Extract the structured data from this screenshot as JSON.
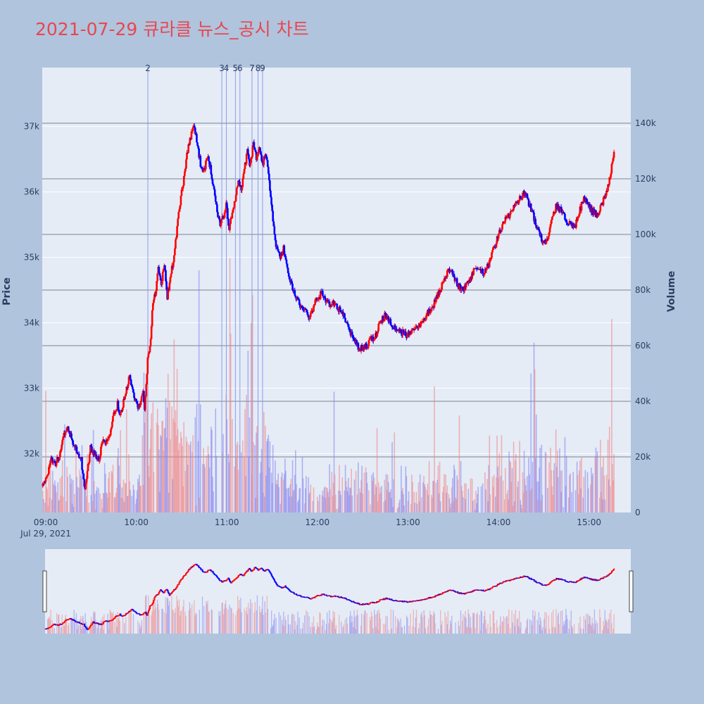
{
  "title": "2021-07-29 큐라클 뉴스_공시 차트",
  "colors": {
    "up": "#ff0000",
    "down": "#0000ff",
    "title": "#e8474f",
    "paper": "#b0c4de",
    "plot": "#e5ecf6",
    "news_line": "#8c9cf0"
  },
  "chart_data": {
    "type": "candlestick",
    "y_title": "Price",
    "y2_title": "Volume",
    "y_ticks": [
      {
        "value": 32000,
        "label": "32k"
      },
      {
        "value": 33000,
        "label": "33k"
      },
      {
        "value": 34000,
        "label": "34k"
      },
      {
        "value": 35000,
        "label": "35k"
      },
      {
        "value": 36000,
        "label": "36k"
      },
      {
        "value": 37000,
        "label": "37k"
      }
    ],
    "y2_ticks": [
      {
        "value": 0,
        "label": "0"
      },
      {
        "value": 20000,
        "label": "20k"
      },
      {
        "value": 40000,
        "label": "40k"
      },
      {
        "value": 60000,
        "label": "60k"
      },
      {
        "value": 80000,
        "label": "80k"
      },
      {
        "value": 100000,
        "label": "100k"
      },
      {
        "value": 120000,
        "label": "120k"
      },
      {
        "value": 140000,
        "label": "140k"
      }
    ],
    "x_ticks": [
      {
        "minute": 0,
        "label": "09:00",
        "sub": "Jul 29, 2021"
      },
      {
        "minute": 60,
        "label": "10:00"
      },
      {
        "minute": 120,
        "label": "11:00"
      },
      {
        "minute": 180,
        "label": "12:00"
      },
      {
        "minute": 240,
        "label": "13:00"
      },
      {
        "minute": 300,
        "label": "14:00"
      },
      {
        "minute": 360,
        "label": "15:00"
      }
    ],
    "ylim": [
      31100,
      37900
    ],
    "y2lim": [
      0,
      160000
    ],
    "xlim": [
      0,
      390
    ],
    "price_path": [
      [
        0,
        31500
      ],
      [
        3,
        31600
      ],
      [
        6,
        31900
      ],
      [
        9,
        31850
      ],
      [
        12,
        32000
      ],
      [
        14,
        32300
      ],
      [
        17,
        32400
      ],
      [
        20,
        32200
      ],
      [
        23,
        32050
      ],
      [
        26,
        31900
      ],
      [
        28,
        31450
      ],
      [
        30,
        31700
      ],
      [
        32,
        32100
      ],
      [
        35,
        32000
      ],
      [
        38,
        31900
      ],
      [
        40,
        32200
      ],
      [
        42,
        32150
      ],
      [
        45,
        32300
      ],
      [
        47,
        32600
      ],
      [
        50,
        32750
      ],
      [
        52,
        32600
      ],
      [
        54,
        32800
      ],
      [
        56,
        33000
      ],
      [
        58,
        33200
      ],
      [
        60,
        32950
      ],
      [
        62,
        32800
      ],
      [
        64,
        32700
      ],
      [
        67,
        32950
      ],
      [
        68,
        32650
      ],
      [
        70,
        33450
      ],
      [
        72,
        33750
      ],
      [
        73,
        34200
      ],
      [
        75,
        34450
      ],
      [
        77,
        34800
      ],
      [
        79,
        34600
      ],
      [
        81,
        34900
      ],
      [
        83,
        34400
      ],
      [
        85,
        34700
      ],
      [
        88,
        35100
      ],
      [
        90,
        35600
      ],
      [
        92,
        35900
      ],
      [
        95,
        36400
      ],
      [
        97,
        36700
      ],
      [
        99,
        36900
      ],
      [
        101,
        37000
      ],
      [
        103,
        36700
      ],
      [
        106,
        36300
      ],
      [
        108,
        36400
      ],
      [
        110,
        36550
      ],
      [
        112,
        36300
      ],
      [
        114,
        36000
      ],
      [
        116,
        35700
      ],
      [
        118,
        35500
      ],
      [
        120,
        35600
      ],
      [
        122,
        35800
      ],
      [
        124,
        35400
      ],
      [
        126,
        35700
      ],
      [
        128,
        35900
      ],
      [
        130,
        36200
      ],
      [
        132,
        36000
      ],
      [
        134,
        36350
      ],
      [
        136,
        36600
      ],
      [
        138,
        36400
      ],
      [
        140,
        36750
      ],
      [
        142,
        36500
      ],
      [
        144,
        36700
      ],
      [
        146,
        36400
      ],
      [
        148,
        36600
      ],
      [
        150,
        36300
      ],
      [
        152,
        35800
      ],
      [
        154,
        35300
      ],
      [
        156,
        35100
      ],
      [
        158,
        35000
      ],
      [
        160,
        35150
      ],
      [
        162,
        34900
      ],
      [
        164,
        34700
      ],
      [
        166,
        34500
      ],
      [
        168,
        34400
      ],
      [
        170,
        34300
      ],
      [
        172,
        34200
      ],
      [
        175,
        34150
      ],
      [
        177,
        34050
      ],
      [
        179,
        34200
      ],
      [
        182,
        34350
      ],
      [
        185,
        34450
      ],
      [
        188,
        34350
      ],
      [
        191,
        34250
      ],
      [
        194,
        34300
      ],
      [
        197,
        34200
      ],
      [
        200,
        34100
      ],
      [
        203,
        33950
      ],
      [
        206,
        33750
      ],
      [
        209,
        33650
      ],
      [
        212,
        33600
      ],
      [
        215,
        33650
      ],
      [
        218,
        33750
      ],
      [
        221,
        33800
      ],
      [
        224,
        34000
      ],
      [
        227,
        34100
      ],
      [
        230,
        34050
      ],
      [
        233,
        33950
      ],
      [
        236,
        33900
      ],
      [
        239,
        33850
      ],
      [
        242,
        33800
      ],
      [
        245,
        33850
      ],
      [
        248,
        33900
      ],
      [
        251,
        34000
      ],
      [
        254,
        34100
      ],
      [
        257,
        34200
      ],
      [
        260,
        34300
      ],
      [
        263,
        34450
      ],
      [
        266,
        34650
      ],
      [
        269,
        34800
      ],
      [
        272,
        34750
      ],
      [
        275,
        34600
      ],
      [
        278,
        34500
      ],
      [
        281,
        34550
      ],
      [
        284,
        34700
      ],
      [
        287,
        34850
      ],
      [
        290,
        34800
      ],
      [
        293,
        34750
      ],
      [
        296,
        34900
      ],
      [
        299,
        35100
      ],
      [
        302,
        35300
      ],
      [
        305,
        35500
      ],
      [
        308,
        35600
      ],
      [
        311,
        35700
      ],
      [
        314,
        35800
      ],
      [
        317,
        35900
      ],
      [
        320,
        36000
      ],
      [
        323,
        35800
      ],
      [
        326,
        35600
      ],
      [
        329,
        35400
      ],
      [
        332,
        35200
      ],
      [
        335,
        35300
      ],
      [
        338,
        35600
      ],
      [
        341,
        35800
      ],
      [
        344,
        35700
      ],
      [
        347,
        35600
      ],
      [
        350,
        35500
      ],
      [
        353,
        35450
      ],
      [
        356,
        35700
      ],
      [
        359,
        35900
      ],
      [
        362,
        35800
      ],
      [
        365,
        35700
      ],
      [
        368,
        35650
      ],
      [
        371,
        35800
      ],
      [
        374,
        36000
      ],
      [
        377,
        36300
      ],
      [
        379,
        36650
      ]
    ],
    "news_markers": [
      {
        "label": "2",
        "minute": 70
      },
      {
        "label": "3",
        "minute": 119
      },
      {
        "label": "4",
        "minute": 122
      },
      {
        "label": "5",
        "minute": 128
      },
      {
        "label": "6",
        "minute": 131
      },
      {
        "label": "7",
        "minute": 139
      },
      {
        "label": "8",
        "minute": 143
      },
      {
        "label": "9",
        "minute": 146
      }
    ]
  }
}
